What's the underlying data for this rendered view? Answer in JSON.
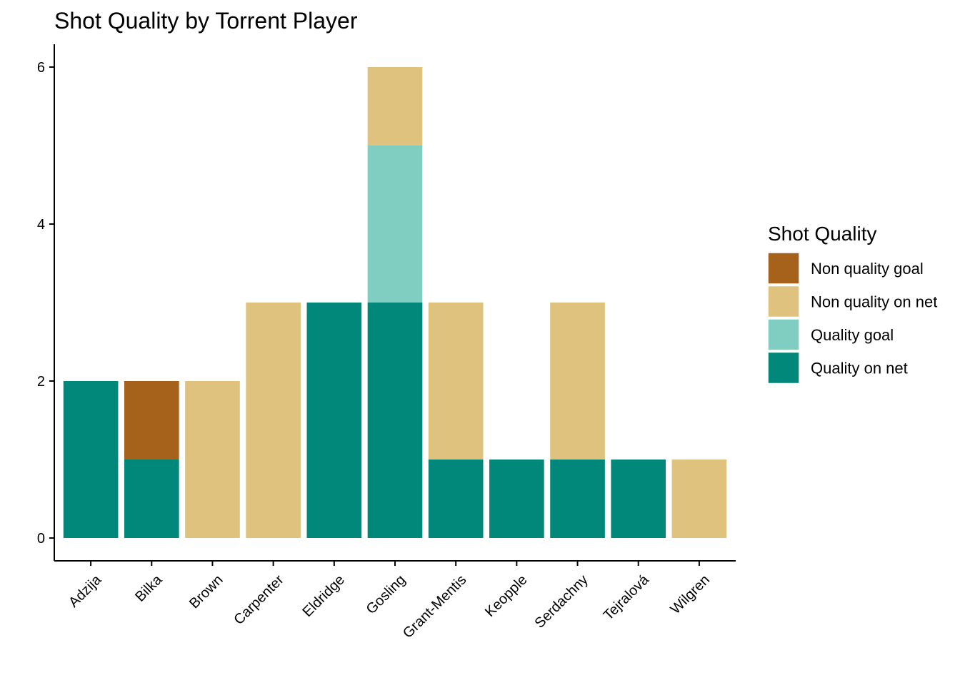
{
  "chart_data": {
    "type": "bar",
    "stacked": true,
    "title": "Shot Quality by Torrent Player",
    "xlabel": "",
    "ylabel": "",
    "ylim": [
      0,
      6.3
    ],
    "yticks": [
      0,
      2,
      4,
      6
    ],
    "categories": [
      "Adzija",
      "Bilka",
      "Brown",
      "Carpenter",
      "Eldridge",
      "Gosling",
      "Grant-Mentis",
      "Keopple",
      "Serdachny",
      "Tejralová",
      "Wilgren"
    ],
    "series": [
      {
        "name": "Quality on net",
        "color": "#01887a",
        "values": [
          2,
          1,
          0,
          0,
          3,
          3,
          1,
          1,
          1,
          1,
          0
        ]
      },
      {
        "name": "Non quality goal",
        "color": "#a6611a",
        "values": [
          0,
          1,
          0,
          0,
          0,
          0,
          0,
          0,
          0,
          0,
          0
        ]
      },
      {
        "name": "Quality goal",
        "color": "#80cdc1",
        "values": [
          0,
          0,
          0,
          0,
          0,
          2,
          0,
          0,
          0,
          0,
          0
        ]
      },
      {
        "name": "Non quality on net",
        "color": "#dfc27d",
        "values": [
          0,
          0,
          2,
          3,
          0,
          1,
          2,
          0,
          2,
          0,
          1
        ]
      }
    ],
    "legend": {
      "title": "Shot Quality",
      "position": "right",
      "order": [
        "Non quality goal",
        "Non quality on net",
        "Quality goal",
        "Quality on net"
      ]
    },
    "grid": false
  }
}
